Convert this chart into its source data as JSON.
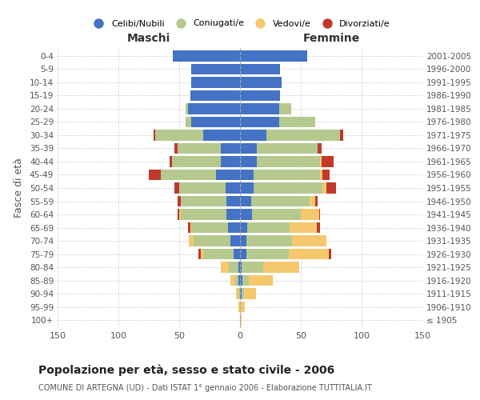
{
  "age_groups": [
    "100+",
    "95-99",
    "90-94",
    "85-89",
    "80-84",
    "75-79",
    "70-74",
    "65-69",
    "60-64",
    "55-59",
    "50-54",
    "45-49",
    "40-44",
    "35-39",
    "30-34",
    "25-29",
    "20-24",
    "15-19",
    "10-14",
    "5-9",
    "0-4"
  ],
  "birth_years": [
    "≤ 1905",
    "1906-1910",
    "1911-1915",
    "1916-1920",
    "1921-1925",
    "1926-1930",
    "1931-1935",
    "1936-1940",
    "1941-1945",
    "1946-1950",
    "1951-1955",
    "1956-1960",
    "1961-1965",
    "1966-1970",
    "1971-1975",
    "1976-1980",
    "1981-1985",
    "1986-1990",
    "1991-1995",
    "1996-2000",
    "2001-2005"
  ],
  "maschi": {
    "celibi": [
      0,
      0,
      0,
      1,
      1,
      5,
      8,
      10,
      11,
      11,
      12,
      20,
      16,
      16,
      30,
      40,
      43,
      41,
      40,
      40,
      55
    ],
    "coniugati": [
      0,
      0,
      1,
      3,
      8,
      25,
      30,
      30,
      38,
      38,
      38,
      45,
      40,
      35,
      40,
      5,
      2,
      0,
      0,
      0,
      0
    ],
    "vedovi": [
      0,
      1,
      2,
      4,
      7,
      2,
      4,
      1,
      1,
      0,
      0,
      0,
      0,
      0,
      0,
      0,
      0,
      0,
      0,
      0,
      0
    ],
    "divorziati": [
      0,
      0,
      0,
      0,
      0,
      2,
      0,
      2,
      1,
      2,
      4,
      10,
      2,
      3,
      1,
      0,
      0,
      0,
      0,
      0,
      0
    ]
  },
  "femmine": {
    "nubili": [
      0,
      0,
      1,
      2,
      1,
      5,
      5,
      6,
      10,
      9,
      11,
      11,
      14,
      14,
      22,
      32,
      32,
      33,
      34,
      33,
      55
    ],
    "coniugate": [
      0,
      0,
      2,
      5,
      18,
      35,
      38,
      35,
      40,
      48,
      57,
      55,
      52,
      50,
      60,
      30,
      10,
      0,
      0,
      0,
      0
    ],
    "vedove": [
      1,
      4,
      10,
      20,
      30,
      33,
      28,
      22,
      15,
      5,
      3,
      2,
      1,
      0,
      0,
      0,
      0,
      0,
      0,
      0,
      0
    ],
    "divorziate": [
      0,
      0,
      0,
      0,
      0,
      2,
      0,
      3,
      1,
      2,
      8,
      6,
      10,
      3,
      3,
      0,
      0,
      0,
      0,
      0,
      0
    ]
  },
  "colors": {
    "celibi": "#4472c4",
    "coniugati": "#b5c98e",
    "vedovi": "#f5c86e",
    "divorziati": "#c0392b"
  },
  "title": "Popolazione per età, sesso e stato civile - 2006",
  "subtitle": "COMUNE DI ARTEGNA (UD) - Dati ISTAT 1° gennaio 2006 - Elaborazione TUTTITALIA.IT",
  "ylabel_left": "Fasce di età",
  "xlabel_left": "Maschi",
  "xlabel_right": "Femmine",
  "xlim": 150,
  "bg_color": "#ffffff",
  "grid_color": "#cccccc"
}
